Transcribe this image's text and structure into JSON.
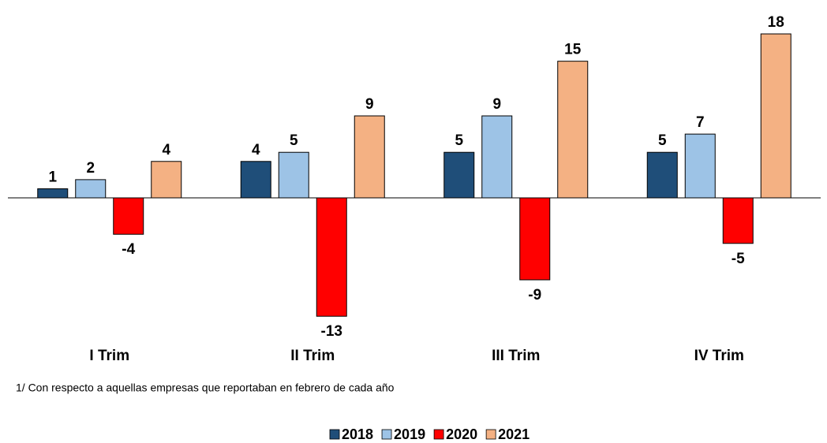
{
  "chart_data": {
    "type": "bar",
    "categories": [
      "I Trim",
      "II Trim",
      "III Trim",
      "IV Trim"
    ],
    "series": [
      {
        "name": "2018",
        "color": "#1f4e79",
        "values": [
          1,
          4,
          5,
          5
        ]
      },
      {
        "name": "2019",
        "color": "#9dc3e6",
        "values": [
          2,
          5,
          9,
          7
        ]
      },
      {
        "name": "2020",
        "color": "#ff0000",
        "values": [
          -4,
          -13,
          -9,
          -5
        ]
      },
      {
        "name": "2021",
        "color": "#f4b183",
        "values": [
          4,
          9,
          15,
          18
        ]
      }
    ],
    "note": "1/ Con respecto a aquellas empresas que reportaban en febrero de cada año",
    "legend": "bottom"
  }
}
